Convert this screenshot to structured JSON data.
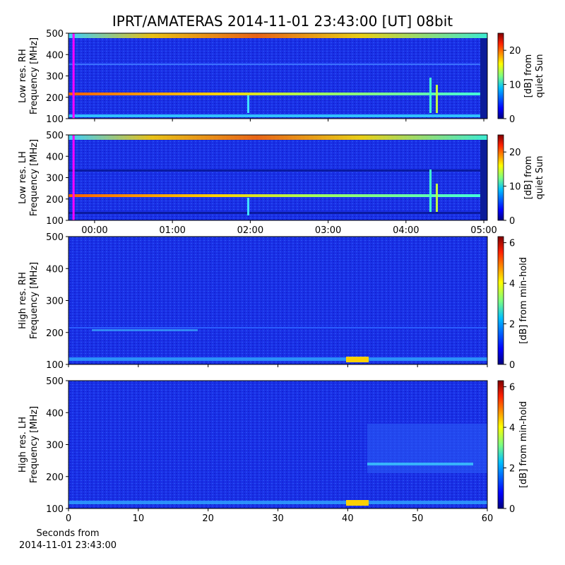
{
  "figure": {
    "title": "IPRT/AMATERAS 2014-11-01 23:43:00 [UT]   08bit",
    "xlabel": [
      "Seconds from",
      "2014-11-01 23:43:00"
    ]
  },
  "chart_data": [
    {
      "type": "heatmap",
      "ylabel": [
        "Low res. RH",
        "Frequency [MHz]"
      ],
      "ylim": [
        100,
        500
      ],
      "yticks": [
        100,
        200,
        300,
        400,
        500
      ],
      "xlim": [
        -0.335,
        5.045
      ],
      "xticks": [
        0,
        1,
        2,
        3,
        4,
        5
      ],
      "show_xticklabels": false,
      "marker": {
        "x": -0.27,
        "color": "#ff00ff"
      },
      "colorbar": {
        "label": [
          "[dB] from",
          "quiet Sun"
        ],
        "lim": [
          0,
          25
        ],
        "ticks": [
          0,
          10,
          20
        ]
      }
    },
    {
      "type": "heatmap",
      "ylabel": [
        "Low res. LH",
        "Frequency [MHz]"
      ],
      "ylim": [
        100,
        500
      ],
      "yticks": [
        100,
        200,
        300,
        400,
        500
      ],
      "xlim": [
        -0.335,
        5.045
      ],
      "xticks": [
        {
          "value": 0,
          "label": "00:00"
        },
        {
          "value": 1,
          "label": "01:00"
        },
        {
          "value": 2,
          "label": "02:00"
        },
        {
          "value": 3,
          "label": "03:00"
        },
        {
          "value": 4,
          "label": "04:00"
        },
        {
          "value": 5,
          "label": "05:00"
        }
      ],
      "show_xticklabels": true,
      "marker": {
        "x": -0.27,
        "color": "#ff00ff"
      },
      "colorbar": {
        "label": [
          "[dB] from",
          "quiet Sun"
        ],
        "lim": [
          0,
          25
        ],
        "ticks": [
          0,
          10,
          20
        ]
      }
    },
    {
      "type": "heatmap",
      "ylabel": [
        "High res. RH",
        "Frequency [MHz]"
      ],
      "ylim": [
        100,
        500
      ],
      "yticks": [
        100,
        200,
        300,
        400,
        500
      ],
      "xlim": [
        0,
        60
      ],
      "xticks": [
        0,
        10,
        20,
        30,
        40,
        50,
        60
      ],
      "show_xticklabels": false,
      "colorbar": {
        "label": [
          "[dB] from min-hold"
        ],
        "lim": [
          0,
          6.3
        ],
        "ticks": [
          0,
          2,
          4,
          6
        ]
      }
    },
    {
      "type": "heatmap",
      "ylabel": [
        "High res. LH",
        "Frequency [MHz]"
      ],
      "ylim": [
        100,
        500
      ],
      "yticks": [
        100,
        200,
        300,
        400,
        500
      ],
      "xlim": [
        0,
        60
      ],
      "xticks": [
        0,
        10,
        20,
        30,
        40,
        50,
        60
      ],
      "show_xticklabels": true,
      "colorbar": {
        "label": [
          "[dB] from min-hold"
        ],
        "lim": [
          0,
          6.3
        ],
        "ticks": [
          0,
          2,
          4,
          6
        ]
      }
    }
  ]
}
